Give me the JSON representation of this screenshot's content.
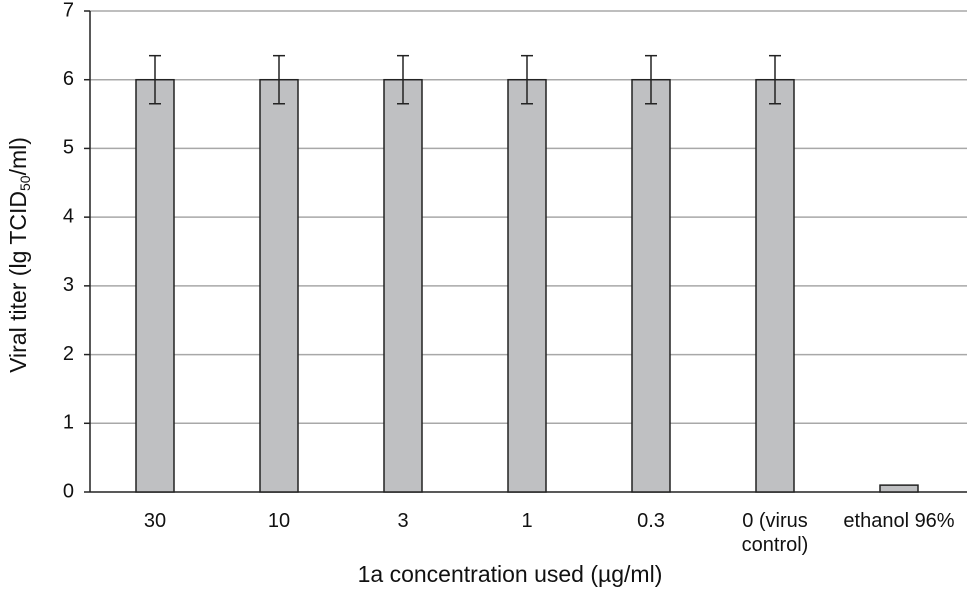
{
  "chart_data": {
    "type": "bar",
    "ylabel_parts": [
      "Viral titer (lg TCID",
      "50",
      "/ml)"
    ],
    "xlabel": "1a concentration used (µg/ml)",
    "categories": [
      "30",
      "10",
      "3",
      "1",
      "0.3",
      "0 (virus control)",
      "ethanol 96%"
    ],
    "values": [
      6,
      6,
      6,
      6,
      6,
      6,
      0.1
    ],
    "errors": [
      0.35,
      0.35,
      0.35,
      0.35,
      0.35,
      0.35,
      null
    ],
    "color": "#bfc0c2",
    "ylim": [
      0,
      7
    ],
    "yticks": [
      0,
      1,
      2,
      3,
      4,
      5,
      6,
      7
    ],
    "grid": true
  }
}
